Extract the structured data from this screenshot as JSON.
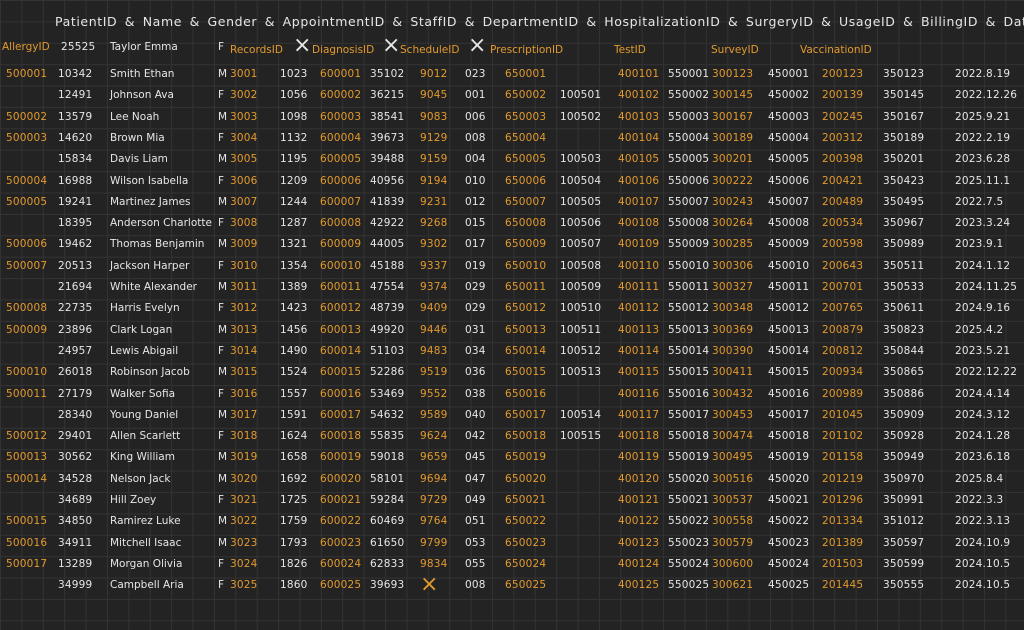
{
  "colors": {
    "background": "#232323",
    "ink": "#e6e6e6",
    "accent": "#e39a2d"
  },
  "header_line": "PatientID & Name & Gender & AppointmentID & StaffID & DepartmentID & HospitalizationID & SurgeryID & UsageID & BillingID & Date",
  "first_row": {
    "allergy_header": "AllergyID",
    "patient_id": "25525",
    "name": "Taylor Emma",
    "gender": "F",
    "records_header": "RecordsID",
    "diagnosis_header": "DiagnosisID",
    "schedule_header": "ScheduleID",
    "prescription_header": "PrescriptionID",
    "test_header": "TestID",
    "survey_header": "SurveyID",
    "vaccination_header": "VaccinationID",
    "cross_mark": "×"
  },
  "columns": [
    "AllergyID",
    "PatientID",
    "Name",
    "Gender",
    "RecordsID",
    "AppointmentID",
    "DiagnosisID",
    "StaffID",
    "ScheduleID",
    "DepartmentID",
    "PrescriptionID",
    "HospitalizationID",
    "TestID",
    "SurgeryID",
    "SurveyID",
    "UsageID",
    "VaccinationID",
    "BillingID",
    "Date"
  ],
  "rows": [
    [
      "500001",
      "10342",
      "Smith Ethan",
      "M",
      "3001",
      "1023",
      "600001",
      "35102",
      "9012",
      "023",
      "650001",
      "",
      "400101",
      "550001",
      "300123",
      "450001",
      "200123",
      "350123",
      "2022.8.19"
    ],
    [
      "",
      "12491",
      "Johnson Ava",
      "F",
      "3002",
      "1056",
      "600002",
      "36215",
      "9045",
      "001",
      "650002",
      "100501",
      "400102",
      "550002",
      "300145",
      "450002",
      "200139",
      "350145",
      "2022.12.26"
    ],
    [
      "500002",
      "13579",
      "Lee Noah",
      "M",
      "3003",
      "1098",
      "600003",
      "38541",
      "9083",
      "006",
      "650003",
      "100502",
      "400103",
      "550003",
      "300167",
      "450003",
      "200245",
      "350167",
      "2025.9.21"
    ],
    [
      "500003",
      "14620",
      "Brown Mia",
      "F",
      "3004",
      "1132",
      "600004",
      "39673",
      "9129",
      "008",
      "650004",
      "",
      "400104",
      "550004",
      "300189",
      "450004",
      "200312",
      "350189",
      "2022.2.19"
    ],
    [
      "",
      "15834",
      "Davis Liam",
      "M",
      "3005",
      "1195",
      "600005",
      "39488",
      "9159",
      "004",
      "650005",
      "100503",
      "400105",
      "550005",
      "300201",
      "450005",
      "200398",
      "350201",
      "2023.6.28"
    ],
    [
      "500004",
      "16988",
      "Wilson Isabella",
      "F",
      "3006",
      "1209",
      "600006",
      "40956",
      "9194",
      "010",
      "650006",
      "100504",
      "400106",
      "550006",
      "300222",
      "450006",
      "200421",
      "350423",
      "2025.11.1"
    ],
    [
      "500005",
      "19241",
      "Martinez James",
      "M",
      "3007",
      "1244",
      "600007",
      "41839",
      "9231",
      "012",
      "650007",
      "100505",
      "400107",
      "550007",
      "300243",
      "450007",
      "200489",
      "350495",
      "2022.7.5"
    ],
    [
      "",
      "18395",
      "Anderson Charlotte",
      "F",
      "3008",
      "1287",
      "600008",
      "42922",
      "9268",
      "015",
      "650008",
      "100506",
      "400108",
      "550008",
      "300264",
      "450008",
      "200534",
      "350967",
      "2023.3.24"
    ],
    [
      "500006",
      "19462",
      "Thomas Benjamin",
      "M",
      "3009",
      "1321",
      "600009",
      "44005",
      "9302",
      "017",
      "650009",
      "100507",
      "400109",
      "550009",
      "300285",
      "450009",
      "200598",
      "350989",
      "2023.9.1"
    ],
    [
      "500007",
      "20513",
      "Jackson Harper",
      "F",
      "3010",
      "1354",
      "600010",
      "45188",
      "9337",
      "019",
      "650010",
      "100508",
      "400110",
      "550010",
      "300306",
      "450010",
      "200643",
      "350511",
      "2024.1.12"
    ],
    [
      "",
      "21694",
      "White Alexander",
      "M",
      "3011",
      "1389",
      "600011",
      "47554",
      "9374",
      "029",
      "650011",
      "100509",
      "400111",
      "550011",
      "300327",
      "450011",
      "200701",
      "350533",
      "2024.11.25"
    ],
    [
      "500008",
      "22735",
      "Harris Evelyn",
      "F",
      "3012",
      "1423",
      "600012",
      "48739",
      "9409",
      "029",
      "650012",
      "100510",
      "400112",
      "550012",
      "300348",
      "450012",
      "200765",
      "350611",
      "2024.9.16"
    ],
    [
      "500009",
      "23896",
      "Clark Logan",
      "M",
      "3013",
      "1456",
      "600013",
      "49920",
      "9446",
      "031",
      "650013",
      "100511",
      "400113",
      "550013",
      "300369",
      "450013",
      "200879",
      "350823",
      "2025.4.2"
    ],
    [
      "",
      "24957",
      "Lewis Abigail",
      "F",
      "3014",
      "1490",
      "600014",
      "51103",
      "9483",
      "034",
      "650014",
      "100512",
      "400114",
      "550014",
      "300390",
      "450014",
      "200812",
      "350844",
      "2023.5.21"
    ],
    [
      "500010",
      "26018",
      "Robinson Jacob",
      "M",
      "3015",
      "1524",
      "600015",
      "52286",
      "9519",
      "036",
      "650015",
      "100513",
      "400115",
      "550015",
      "300411",
      "450015",
      "200934",
      "350865",
      "2022.12.22"
    ],
    [
      "500011",
      "27179",
      "Walker Sofia",
      "F",
      "3016",
      "1557",
      "600016",
      "53469",
      "9552",
      "038",
      "650016",
      "",
      "400116",
      "550016",
      "300432",
      "450016",
      "200989",
      "350886",
      "2024.4.14"
    ],
    [
      "",
      "28340",
      "Young Daniel",
      "M",
      "3017",
      "1591",
      "600017",
      "54632",
      "9589",
      "040",
      "650017",
      "100514",
      "400117",
      "550017",
      "300453",
      "450017",
      "201045",
      "350909",
      "2024.3.12"
    ],
    [
      "500012",
      "29401",
      "Allen Scarlett",
      "F",
      "3018",
      "1624",
      "600018",
      "55835",
      "9624",
      "042",
      "650018",
      "100515",
      "400118",
      "550018",
      "300474",
      "450018",
      "201102",
      "350928",
      "2024.1.28"
    ],
    [
      "500013",
      "30562",
      "King William",
      "M",
      "3019",
      "1658",
      "600019",
      "59018",
      "9659",
      "045",
      "650019",
      "",
      "400119",
      "550019",
      "300495",
      "450019",
      "201158",
      "350949",
      "2023.6.18"
    ],
    [
      "500014",
      "34528",
      "Nelson Jack",
      "M",
      "3020",
      "1692",
      "600020",
      "58101",
      "9694",
      "047",
      "650020",
      "",
      "400120",
      "550020",
      "300516",
      "450020",
      "201219",
      "350970",
      "2025.8.4"
    ],
    [
      "",
      "34689",
      "Hill Zoey",
      "F",
      "3021",
      "1725",
      "600021",
      "59284",
      "9729",
      "049",
      "650021",
      "",
      "400121",
      "550021",
      "300537",
      "450021",
      "201296",
      "350991",
      "2022.3.3"
    ],
    [
      "500015",
      "34850",
      "Ramirez Luke",
      "M",
      "3022",
      "1759",
      "600022",
      "60469",
      "9764",
      "051",
      "650022",
      "",
      "400122",
      "550022",
      "300558",
      "450022",
      "201334",
      "351012",
      "2022.3.13"
    ],
    [
      "500016",
      "34911",
      "Mitchell Isaac",
      "M",
      "3023",
      "1793",
      "600023",
      "61650",
      "9799",
      "053",
      "650023",
      "",
      "400123",
      "550023",
      "300579",
      "450023",
      "201389",
      "350597",
      "2024.10.9"
    ],
    [
      "500017",
      "13289",
      "Morgan Olivia",
      "F",
      "3024",
      "1826",
      "600024",
      "62833",
      "9834",
      "055",
      "650024",
      "",
      "400124",
      "550024",
      "300600",
      "450024",
      "201503",
      "350599",
      "2024.10.5"
    ],
    [
      "",
      "34999",
      "Campbell Aria",
      "F",
      "3025",
      "1860",
      "600025",
      "39693",
      "×",
      "008",
      "650025",
      "",
      "400125",
      "550025",
      "300621",
      "450025",
      "201445",
      "350555",
      "2024.10.5"
    ]
  ]
}
